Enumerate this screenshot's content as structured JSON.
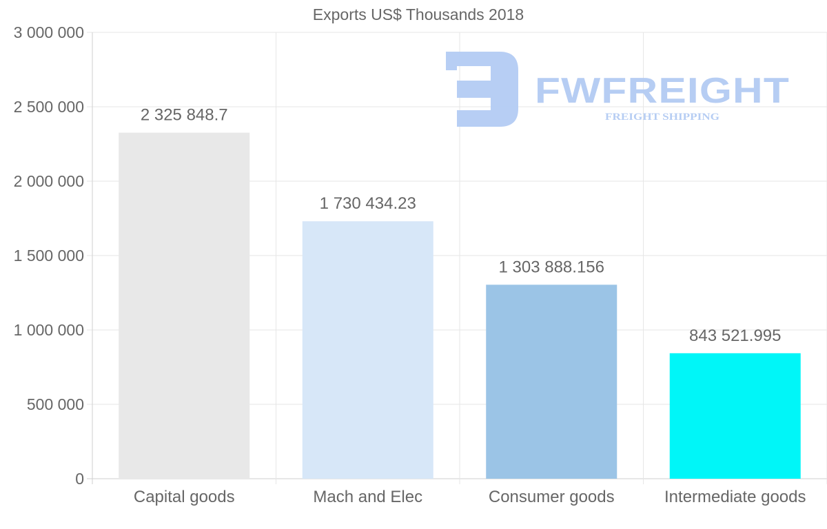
{
  "chart_data": {
    "type": "bar",
    "title": "Exports US$ Thousands 2018",
    "categories": [
      "Capital goods",
      "Mach and Elec",
      "Consumer goods",
      "Intermediate goods"
    ],
    "values": [
      2325848.7,
      1730434.23,
      1303888.156,
      843521.995
    ],
    "value_labels": [
      "2 325 848.7",
      "1 730 434.23",
      "1 303 888.156",
      "843 521.995"
    ],
    "colors": [
      "#e8e8e8",
      "#d7e7f8",
      "#9bc4e6",
      "#00f6f8"
    ],
    "ylim": [
      0,
      3000000
    ],
    "yticks": [
      0,
      500000,
      1000000,
      1500000,
      2000000,
      2500000,
      3000000
    ],
    "ytick_labels": [
      "0",
      "500 000",
      "1 000 000",
      "1 500 000",
      "2 000 000",
      "2 500 000",
      "3 000 000"
    ],
    "xlabel": "",
    "ylabel": "",
    "grid": true,
    "legend": "none"
  },
  "watermark": {
    "brand": "FWFREIGHT",
    "tagline": "FREIGHT SHIPPING",
    "color": "#b3cbf3"
  }
}
